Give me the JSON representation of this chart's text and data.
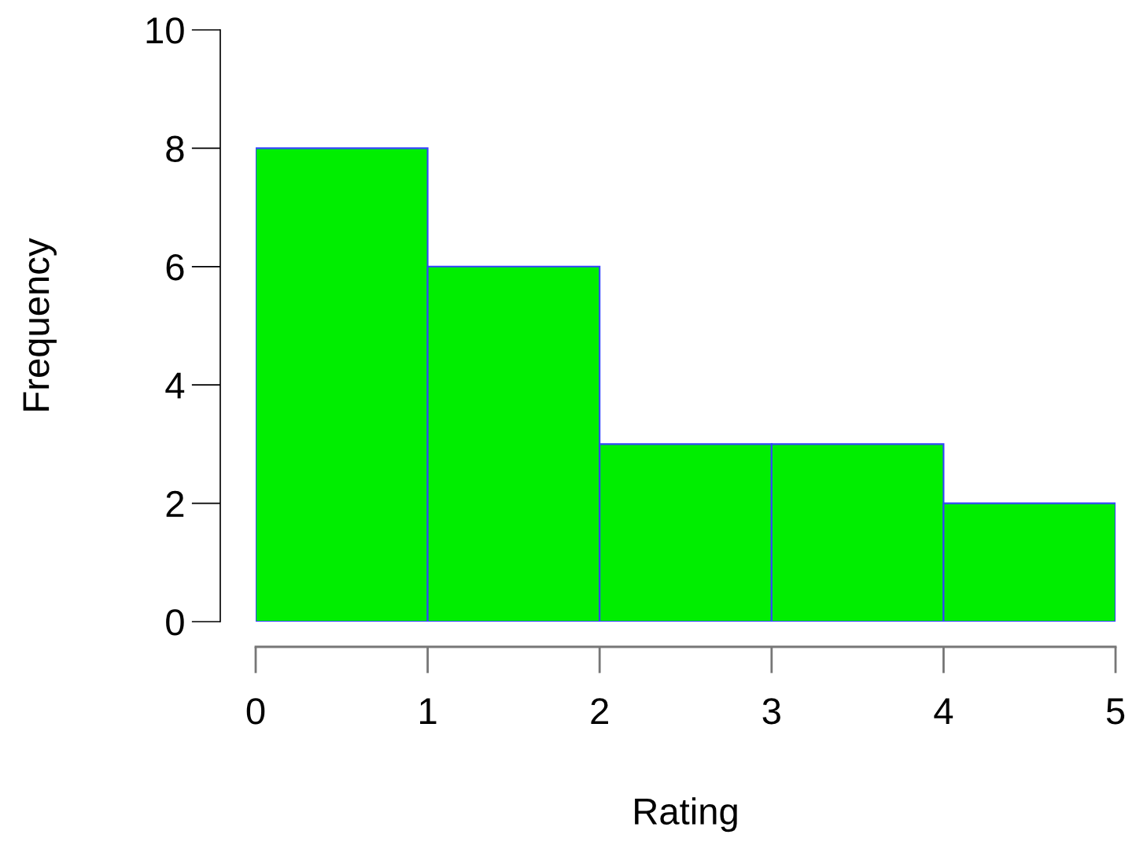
{
  "chart_data": {
    "type": "histogram",
    "xlabel": "Rating",
    "ylabel": "Frequency",
    "bins": [
      0,
      1,
      2,
      3,
      4,
      5
    ],
    "values": [
      8,
      6,
      3,
      3,
      2
    ],
    "color": "#00ee00",
    "xlim": [
      0,
      5
    ],
    "xticks": [
      0,
      1,
      2,
      3,
      4,
      5
    ],
    "ylim": [
      0,
      10
    ],
    "yticks": [
      0,
      2,
      4,
      6,
      8,
      10
    ],
    "grid": false,
    "legend": false
  }
}
